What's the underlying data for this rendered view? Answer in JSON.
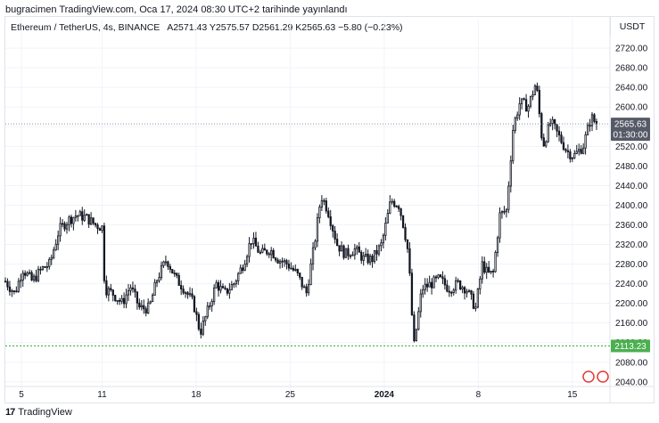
{
  "header": {
    "published_note": "bugracimen TradingView.com, Oca 17, 2024 08:30 UTC+2 tarihinde yayınlandı"
  },
  "legend": {
    "symbol": "Ethereum / TetherUS, 4s, BINANCE",
    "open": "A2571.43",
    "high": "Y2575.57",
    "low": "D2561.29",
    "close": "K2565.63",
    "change": "−5.80 (−0.23%)"
  },
  "currency": "USDT",
  "footer": {
    "brand": "TradingView",
    "logo_text": "17"
  },
  "colors": {
    "candle": "#131722",
    "last_price_bg": "#555a66",
    "support_line": "#4caf50",
    "support_bg": "#4caf50",
    "grid": "#f0f3fa",
    "axis_text": "#131722"
  },
  "chart_data": {
    "type": "candlestick",
    "symbol": "Ethereum / TetherUS",
    "timeframe": "4s",
    "exchange": "BINANCE",
    "x_tick_labels": [
      "5",
      "11",
      "18",
      "25",
      "2024",
      "8",
      "15"
    ],
    "x_tick_positions": [
      4.2,
      10.2,
      17.2,
      24.2,
      31.2,
      38.2,
      45.2
    ],
    "x_range": [
      3,
      48
    ],
    "y_tick_labels": [
      "2040.00",
      "2080.00",
      "2120.00",
      "2160.00",
      "2200.00",
      "2240.00",
      "2280.00",
      "2320.00",
      "2360.00",
      "2400.00",
      "2440.00",
      "2480.00",
      "2520.00",
      "2560.00",
      "2600.00",
      "2640.00",
      "2680.00",
      "2720.00"
    ],
    "ylim": [
      2036,
      2742
    ],
    "last_price": {
      "value": 2565.63,
      "label": "2565.63",
      "countdown": "01:30:00"
    },
    "horizontal_line": {
      "value": 2113.23,
      "label": "2113.23"
    },
    "path": [
      [
        3.0,
        2245
      ],
      [
        3.7,
        2220
      ],
      [
        4.3,
        2270
      ],
      [
        5.0,
        2245
      ],
      [
        5.7,
        2270
      ],
      [
        6.3,
        2280
      ],
      [
        7.0,
        2350
      ],
      [
        7.7,
        2370
      ],
      [
        8.3,
        2380
      ],
      [
        9.0,
        2375
      ],
      [
        9.7,
        2360
      ],
      [
        10.2,
        2355
      ],
      [
        10.4,
        2230
      ],
      [
        11.0,
        2220
      ],
      [
        11.7,
        2200
      ],
      [
        12.3,
        2235
      ],
      [
        13.0,
        2190
      ],
      [
        13.7,
        2190
      ],
      [
        14.3,
        2250
      ],
      [
        15.0,
        2290
      ],
      [
        15.7,
        2250
      ],
      [
        16.3,
        2230
      ],
      [
        17.0,
        2200
      ],
      [
        17.5,
        2140
      ],
      [
        18.0,
        2180
      ],
      [
        18.7,
        2240
      ],
      [
        19.3,
        2220
      ],
      [
        20.0,
        2240
      ],
      [
        20.7,
        2280
      ],
      [
        21.3,
        2330
      ],
      [
        22.0,
        2300
      ],
      [
        22.7,
        2310
      ],
      [
        23.3,
        2290
      ],
      [
        24.0,
        2280
      ],
      [
        24.7,
        2260
      ],
      [
        25.4,
        2220
      ],
      [
        26.0,
        2320
      ],
      [
        26.5,
        2420
      ],
      [
        27.0,
        2390
      ],
      [
        27.7,
        2320
      ],
      [
        28.3,
        2300
      ],
      [
        29.0,
        2310
      ],
      [
        29.7,
        2290
      ],
      [
        30.3,
        2290
      ],
      [
        31.0,
        2320
      ],
      [
        31.7,
        2410
      ],
      [
        32.3,
        2400
      ],
      [
        32.7,
        2350
      ],
      [
        33.0,
        2300
      ],
      [
        33.4,
        2110
      ],
      [
        34.0,
        2230
      ],
      [
        34.7,
        2240
      ],
      [
        35.3,
        2250
      ],
      [
        36.0,
        2230
      ],
      [
        36.7,
        2240
      ],
      [
        37.3,
        2230
      ],
      [
        38.0,
        2190
      ],
      [
        38.5,
        2280
      ],
      [
        38.9,
        2260
      ],
      [
        39.3,
        2260
      ],
      [
        39.8,
        2380
      ],
      [
        40.3,
        2390
      ],
      [
        40.8,
        2560
      ],
      [
        41.3,
        2610
      ],
      [
        41.9,
        2600
      ],
      [
        42.5,
        2650
      ],
      [
        43.0,
        2520
      ],
      [
        43.6,
        2570
      ],
      [
        44.2,
        2540
      ],
      [
        44.8,
        2510
      ],
      [
        45.3,
        2500
      ],
      [
        46.0,
        2520
      ],
      [
        46.6,
        2580
      ],
      [
        47.0,
        2565.63
      ]
    ]
  }
}
